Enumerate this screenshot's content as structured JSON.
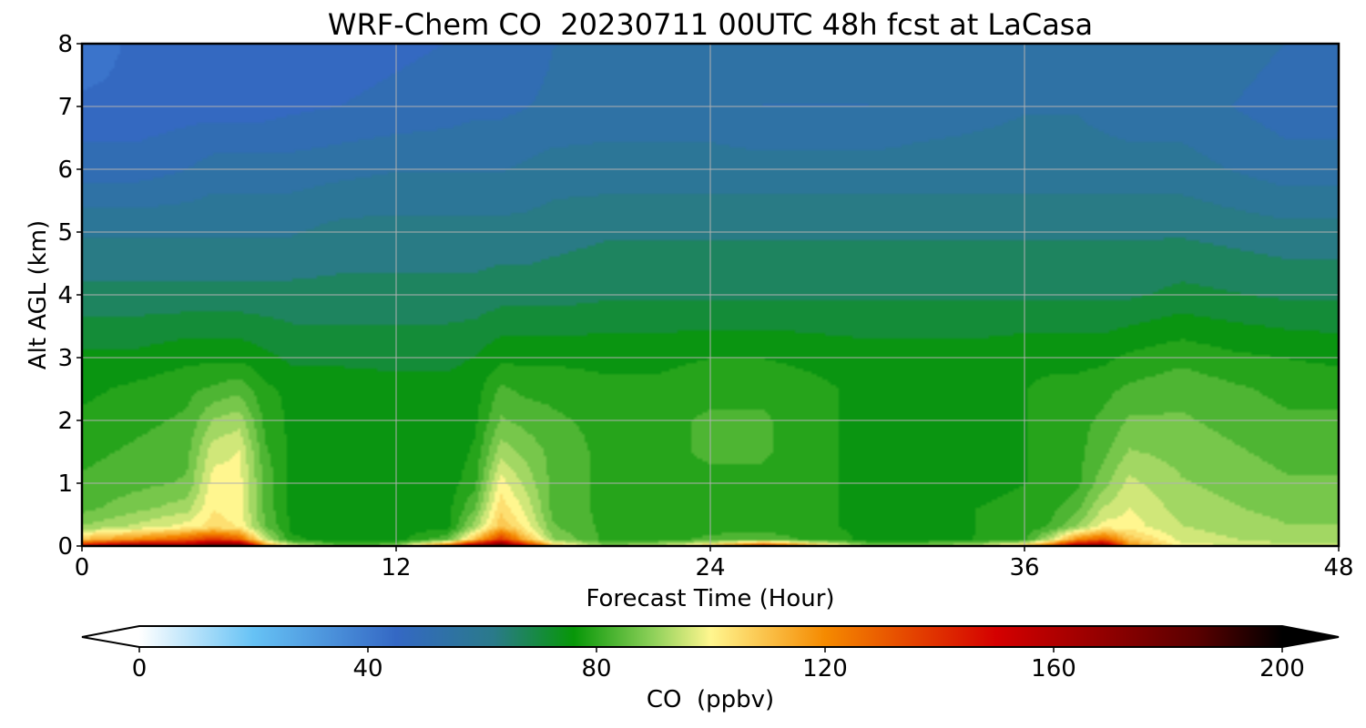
{
  "chart_data": {
    "type": "heatmap",
    "title": "WRF-Chem CO  20230711 00UTC 48h fcst at LaCasa",
    "xlabel": "Forecast Time (Hour)",
    "ylabel": "Alt AGL (km)",
    "xlim": [
      0,
      48
    ],
    "ylim": [
      0,
      8
    ],
    "xticks": [
      0,
      12,
      24,
      36,
      48
    ],
    "yticks": [
      0,
      1,
      2,
      3,
      4,
      5,
      6,
      7,
      8
    ],
    "grid": true,
    "colorbar": {
      "label": "CO  (ppbv)",
      "range": [
        0,
        200
      ],
      "ticks": [
        0,
        40,
        80,
        120,
        160,
        200
      ],
      "extend": "both",
      "stops": [
        {
          "v": 0,
          "color": "#ffffff"
        },
        {
          "v": 20,
          "color": "#66c2f5"
        },
        {
          "v": 45,
          "color": "#3468c4"
        },
        {
          "v": 62,
          "color": "#2a7a8a"
        },
        {
          "v": 76,
          "color": "#079708"
        },
        {
          "v": 90,
          "color": "#8fd15a"
        },
        {
          "v": 100,
          "color": "#fff68f"
        },
        {
          "v": 120,
          "color": "#f58a00"
        },
        {
          "v": 150,
          "color": "#d40000"
        },
        {
          "v": 185,
          "color": "#5a0000"
        },
        {
          "v": 200,
          "color": "#000000"
        }
      ]
    },
    "hours": [
      0,
      2,
      4,
      5,
      6,
      7,
      8,
      10,
      12,
      14,
      15,
      16,
      17,
      18,
      20,
      22,
      24,
      26,
      28,
      30,
      32,
      34,
      36,
      37,
      38,
      39,
      40,
      42,
      44,
      46,
      48
    ],
    "altitudes_km": [
      0,
      0.1,
      0.3,
      0.6,
      1.0,
      1.5,
      2.0,
      2.5,
      3.0,
      4.0,
      5.0,
      6.0,
      7.0,
      8.0
    ],
    "co_ppbv_by_hour": [
      [
        150,
        110,
        90,
        84,
        82,
        80,
        78,
        76,
        74,
        66,
        60,
        50,
        45,
        40
      ],
      [
        175,
        120,
        95,
        88,
        84,
        82,
        80,
        78,
        74,
        66,
        60,
        50,
        45,
        45
      ],
      [
        170,
        130,
        100,
        92,
        86,
        84,
        82,
        80,
        76,
        66,
        60,
        52,
        46,
        45
      ],
      [
        185,
        140,
        104,
        102,
        100,
        96,
        90,
        82,
        76,
        66,
        60,
        54,
        46,
        45
      ],
      [
        190,
        130,
        102,
        100,
        100,
        98,
        92,
        84,
        76,
        66,
        60,
        54,
        46,
        45
      ],
      [
        120,
        95,
        86,
        84,
        84,
        82,
        80,
        78,
        74,
        66,
        60,
        54,
        46,
        45
      ],
      [
        100,
        78,
        76,
        76,
        76,
        76,
        76,
        76,
        72,
        66,
        60,
        54,
        47,
        46
      ],
      [
        85,
        75,
        75,
        75,
        75,
        75,
        75,
        75,
        72,
        66,
        62,
        55,
        48,
        46
      ],
      [
        90,
        75,
        75,
        75,
        75,
        74,
        74,
        74,
        72,
        66,
        62,
        56,
        49,
        47
      ],
      [
        130,
        85,
        76,
        76,
        75,
        74,
        74,
        74,
        72,
        66,
        62,
        56,
        50,
        48
      ],
      [
        170,
        110,
        92,
        85,
        80,
        78,
        76,
        75,
        73,
        66,
        62,
        56,
        51,
        48
      ],
      [
        190,
        140,
        110,
        105,
        100,
        92,
        86,
        82,
        76,
        67,
        62,
        56,
        51,
        49
      ],
      [
        150,
        110,
        100,
        96,
        92,
        88,
        84,
        80,
        76,
        67,
        62,
        57,
        52,
        50
      ],
      [
        110,
        90,
        86,
        84,
        84,
        84,
        82,
        80,
        76,
        67,
        63,
        58,
        53,
        52
      ],
      [
        90,
        80,
        80,
        80,
        80,
        80,
        80,
        78,
        76,
        68,
        64,
        58,
        54,
        53
      ],
      [
        95,
        80,
        80,
        80,
        80,
        80,
        80,
        78,
        76,
        68,
        64,
        58,
        54,
        54
      ],
      [
        110,
        82,
        80,
        80,
        80,
        82,
        82,
        80,
        77,
        68,
        64,
        58,
        54,
        54
      ],
      [
        140,
        84,
        80,
        80,
        80,
        82,
        82,
        80,
        77,
        68,
        64,
        58,
        52,
        54
      ],
      [
        115,
        80,
        78,
        78,
        78,
        78,
        78,
        78,
        76,
        68,
        64,
        58,
        52,
        54
      ],
      [
        90,
        76,
        76,
        76,
        76,
        76,
        76,
        76,
        75,
        68,
        64,
        58,
        52,
        54
      ],
      [
        90,
        76,
        76,
        76,
        76,
        76,
        76,
        76,
        75,
        68,
        64,
        58,
        54,
        54
      ],
      [
        95,
        77,
        77,
        77,
        76,
        76,
        76,
        76,
        75,
        68,
        64,
        58,
        55,
        55
      ],
      [
        110,
        80,
        78,
        78,
        77,
        77,
        77,
        77,
        76,
        68,
        64,
        58,
        56,
        55
      ],
      [
        130,
        95,
        82,
        80,
        78,
        78,
        78,
        78,
        76,
        68,
        64,
        58,
        56,
        55
      ],
      [
        165,
        120,
        90,
        84,
        80,
        80,
        80,
        78,
        76,
        68,
        64,
        58,
        56,
        55
      ],
      [
        175,
        130,
        100,
        94,
        88,
        84,
        82,
        80,
        76,
        68,
        64,
        58,
        55,
        55
      ],
      [
        120,
        110,
        100,
        98,
        95,
        90,
        86,
        82,
        78,
        68,
        64,
        58,
        54,
        54
      ],
      [
        100,
        96,
        94,
        92,
        90,
        88,
        86,
        84,
        80,
        70,
        64,
        58,
        54,
        54
      ],
      [
        98,
        94,
        92,
        90,
        88,
        86,
        84,
        82,
        78,
        69,
        63,
        56,
        52,
        54
      ],
      [
        95,
        92,
        90,
        88,
        86,
        84,
        82,
        80,
        77,
        68,
        62,
        54,
        50,
        52
      ],
      [
        95,
        92,
        90,
        88,
        86,
        84,
        82,
        80,
        76,
        68,
        62,
        54,
        50,
        52
      ]
    ]
  }
}
